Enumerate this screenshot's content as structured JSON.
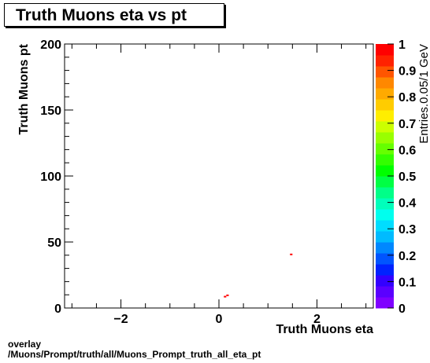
{
  "chart_data": {
    "type": "heatmap",
    "title": "Truth Muons eta vs pt",
    "xlabel": "Truth Muons eta",
    "ylabel": "Truth Muons pt",
    "zlabel": "Entries.0.05/1 GeV",
    "xlim": [
      -3.15,
      3.15
    ],
    "ylim": [
      0,
      200
    ],
    "zlim": [
      0,
      1
    ],
    "x_ticks": [
      "−2",
      "0",
      "2"
    ],
    "x_tick_values": [
      -2,
      0,
      2
    ],
    "y_ticks": [
      "0",
      "50",
      "100",
      "150",
      "200"
    ],
    "y_tick_values": [
      0,
      50,
      100,
      150,
      200
    ],
    "z_ticks": [
      "0",
      "0.1",
      "0.2",
      "0.3",
      "0.4",
      "0.5",
      "0.6",
      "0.7",
      "0.8",
      "0.9",
      "1"
    ],
    "z_tick_values": [
      0,
      0.1,
      0.2,
      0.3,
      0.4,
      0.5,
      0.6,
      0.7,
      0.8,
      0.9,
      1
    ],
    "bin_width": {
      "x": 0.05,
      "y": 1
    },
    "points": [
      {
        "x": 1.45,
        "y": 40,
        "z": 1
      },
      {
        "x": 0.15,
        "y": 9,
        "z": 1
      },
      {
        "x": 0.1,
        "y": 8,
        "z": 1
      }
    ],
    "palette": [
      "#7f00ff",
      "#5a00ff",
      "#3300ff",
      "#0022ff",
      "#0055ff",
      "#0088ff",
      "#00bbff",
      "#00ddff",
      "#00ffee",
      "#00ffbb",
      "#00ff88",
      "#00ff44",
      "#00ff00",
      "#33ff00",
      "#66ff00",
      "#99ff00",
      "#ccff00",
      "#ffee00",
      "#ffcc00",
      "#ffaa00",
      "#ff8800",
      "#ff5500",
      "#ff2200",
      "#ff0000"
    ]
  },
  "footer": {
    "line1": "overlay",
    "line2": "/Muons/Prompt/truth/all/Muons_Prompt_truth_all_eta_pt"
  }
}
